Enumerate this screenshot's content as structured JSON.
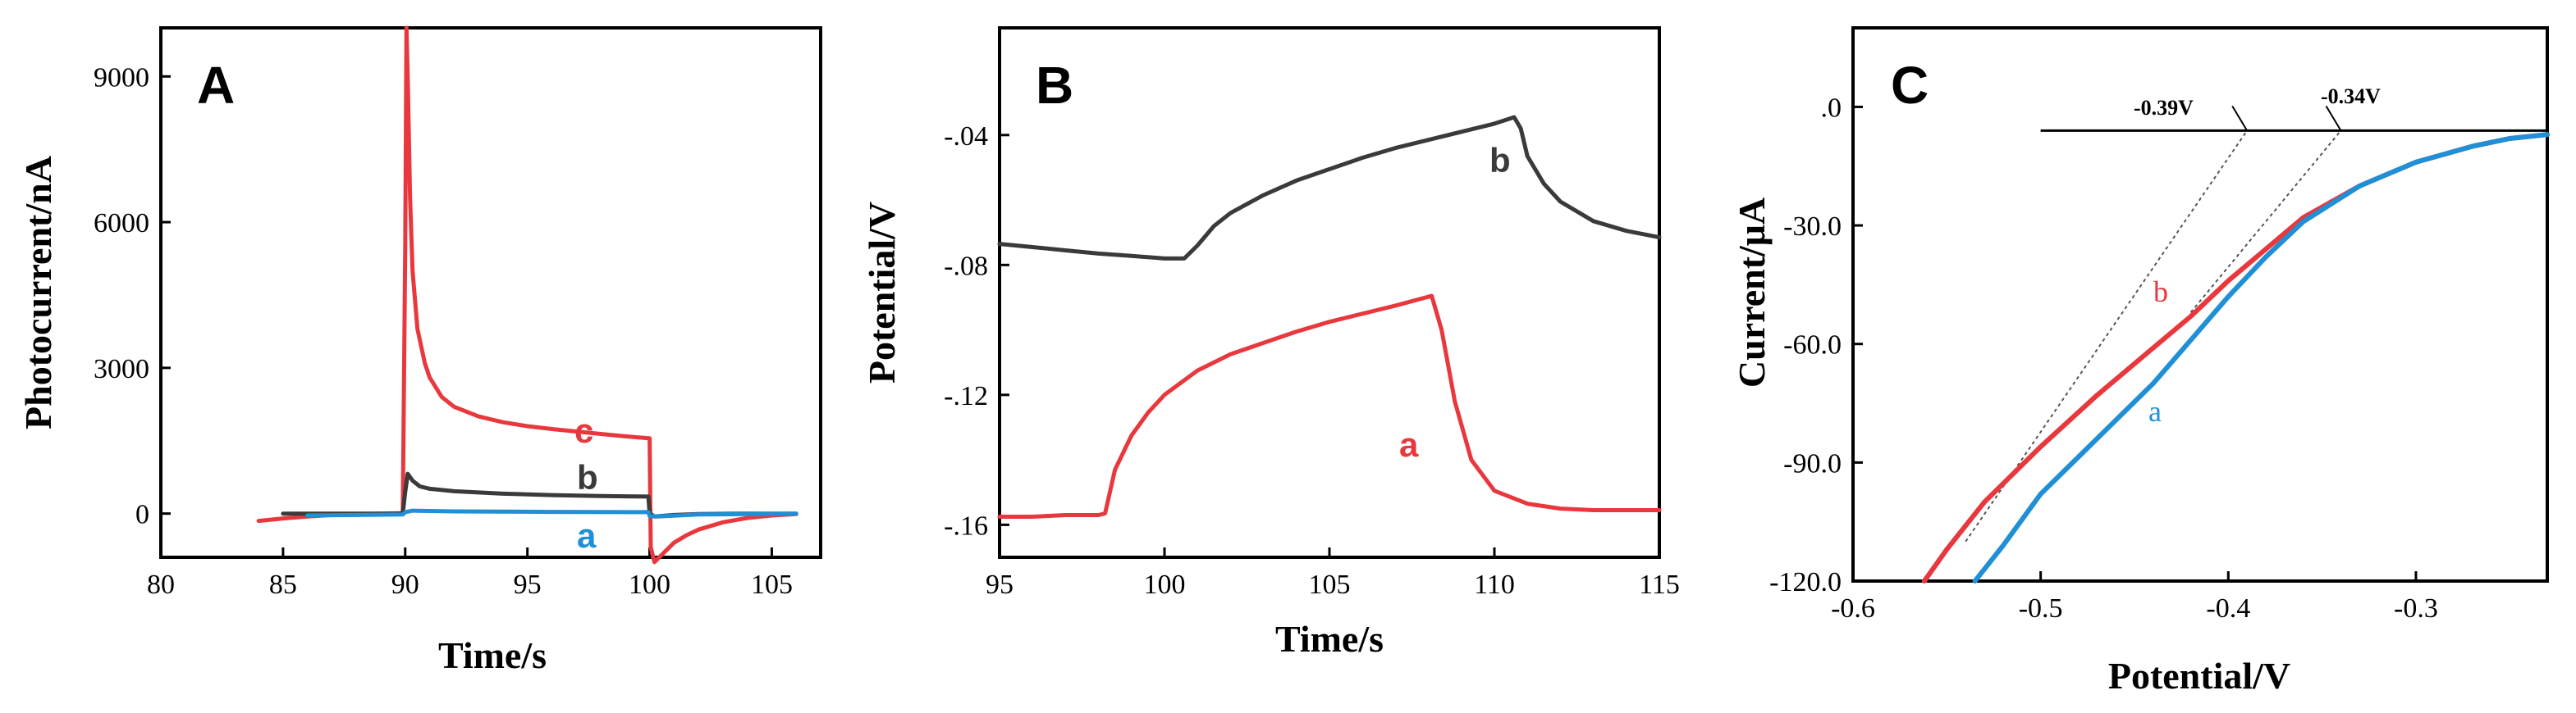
{
  "colors": {
    "red": "#e8383d",
    "gray": "#3a3a3a",
    "blue": "#1f8fd6",
    "black": "#000000"
  },
  "chart_data": [
    {
      "type": "line",
      "panel": "A",
      "xlabel": "Time/s",
      "ylabel": "Photocurrent/nA",
      "xlim": [
        80,
        107
      ],
      "ylim": [
        -900,
        10000
      ],
      "xticks": [
        80,
        85,
        90,
        95,
        100,
        105
      ],
      "yticks": [
        0,
        3000,
        6000,
        9000
      ],
      "series": [
        {
          "name": "c",
          "color": "#e8383d",
          "x": [
            84,
            85,
            86,
            87,
            88,
            89,
            89.9,
            90.0,
            90.05,
            90.1,
            90.2,
            90.3,
            90.5,
            90.8,
            91,
            91.5,
            92,
            93,
            94,
            95,
            96,
            97,
            98,
            99,
            99.95,
            100.0,
            100.05,
            100.2,
            100.5,
            101,
            101.5,
            102,
            103,
            104,
            105,
            106
          ],
          "y": [
            -150,
            -100,
            -60,
            -30,
            -10,
            0,
            10,
            5500,
            10000,
            9000,
            6500,
            5000,
            3800,
            3100,
            2800,
            2400,
            2200,
            2000,
            1880,
            1800,
            1740,
            1690,
            1640,
            1590,
            1550,
            1550,
            -700,
            -1000,
            -850,
            -600,
            -450,
            -330,
            -180,
            -90,
            -40,
            -10
          ]
        },
        {
          "name": "b",
          "color": "#3a3a3a",
          "x": [
            85,
            86,
            88,
            89.9,
            90.0,
            90.1,
            90.3,
            90.6,
            91,
            92,
            94,
            96,
            98,
            99.95,
            100.0,
            100.2,
            101,
            102,
            104,
            106
          ],
          "y": [
            0,
            0,
            0,
            0,
            450,
            820,
            680,
            560,
            510,
            460,
            410,
            380,
            360,
            350,
            0,
            -60,
            -30,
            -10,
            0,
            0
          ]
        },
        {
          "name": "a",
          "color": "#1f8fd6",
          "x": [
            86,
            88,
            89.9,
            90.0,
            90.3,
            92,
            96,
            99.95,
            100.0,
            100.3,
            102,
            104,
            106
          ],
          "y": [
            -40,
            -30,
            -20,
            30,
            60,
            45,
            35,
            30,
            -50,
            -60,
            -20,
            -10,
            0
          ]
        }
      ],
      "labels": [
        "c",
        "b",
        "a"
      ]
    },
    {
      "type": "line",
      "panel": "B",
      "xlabel": "Time/s",
      "ylabel": "Potential/V",
      "xlim": [
        95,
        115
      ],
      "ylim": [
        -0.17,
        -0.007
      ],
      "xticks": [
        95,
        100,
        105,
        110,
        115
      ],
      "yticks": [
        -0.16,
        -0.12,
        -0.08,
        -0.04
      ],
      "series": [
        {
          "name": "b",
          "color": "#3a3a3a",
          "x": [
            95,
            96,
            97,
            98,
            99,
            100,
            100.6,
            101,
            101.5,
            102,
            103,
            104,
            105,
            106,
            107,
            108,
            109,
            110,
            110.6,
            110.8,
            111,
            111.5,
            112,
            113,
            114,
            115
          ],
          "y": [
            -0.0735,
            -0.0745,
            -0.0755,
            -0.0765,
            -0.0772,
            -0.078,
            -0.078,
            -0.074,
            -0.068,
            -0.064,
            -0.0585,
            -0.054,
            -0.0505,
            -0.047,
            -0.044,
            -0.0415,
            -0.039,
            -0.0365,
            -0.0345,
            -0.038,
            -0.0465,
            -0.055,
            -0.0605,
            -0.0665,
            -0.0695,
            -0.0715
          ]
        },
        {
          "name": "a",
          "color": "#e8383d",
          "x": [
            95,
            96,
            97,
            98,
            98.2,
            98.5,
            99,
            99.5,
            100,
            101,
            102,
            103,
            104,
            105,
            106,
            107,
            108.1,
            108.4,
            108.8,
            109.3,
            110,
            111,
            112,
            113,
            114,
            115
          ],
          "y": [
            -0.1575,
            -0.1575,
            -0.157,
            -0.157,
            -0.1565,
            -0.143,
            -0.1325,
            -0.1255,
            -0.12,
            -0.1125,
            -0.1075,
            -0.104,
            -0.1005,
            -0.0975,
            -0.095,
            -0.0925,
            -0.0895,
            -0.1,
            -0.122,
            -0.14,
            -0.1495,
            -0.1535,
            -0.155,
            -0.1555,
            -0.1555,
            -0.1555
          ]
        }
      ],
      "labels": [
        "b",
        "a"
      ]
    },
    {
      "type": "line",
      "panel": "C",
      "xlabel": "Potential/V",
      "ylabel": "Current/μA",
      "xlim": [
        -0.6,
        -0.23
      ],
      "ylim": [
        -120,
        20
      ],
      "xticks": [
        -0.6,
        -0.5,
        -0.4,
        -0.3
      ],
      "yticks": [
        0,
        -30,
        -60,
        -90,
        -120
      ],
      "series": [
        {
          "name": "b",
          "color": "#e8383d",
          "x": [
            -0.562,
            -0.55,
            -0.53,
            -0.5,
            -0.47,
            -0.44,
            -0.42,
            -0.4,
            -0.38,
            -0.36,
            -0.33,
            -0.3,
            -0.27,
            -0.25,
            -0.23
          ],
          "y": [
            -120,
            -112,
            -100,
            -86,
            -73,
            -61,
            -53,
            -44,
            -36,
            -28,
            -20,
            -14,
            -10,
            -8,
            -7
          ]
        },
        {
          "name": "a",
          "color": "#1f8fd6",
          "x": [
            -0.535,
            -0.52,
            -0.5,
            -0.47,
            -0.44,
            -0.42,
            -0.4,
            -0.38,
            -0.36,
            -0.33,
            -0.3,
            -0.27,
            -0.25,
            -0.23
          ],
          "y": [
            -120,
            -111,
            -98,
            -84,
            -70,
            -59,
            -48,
            -38,
            -29,
            -20,
            -14,
            -10,
            -8,
            -7
          ]
        }
      ],
      "baseline_y": -6,
      "baseline_x": [
        -0.5,
        -0.23
      ],
      "tangents": [
        {
          "from": [
            -0.54,
            -110
          ],
          "to": [
            -0.39,
            -6
          ]
        },
        {
          "from": [
            -0.42,
            -52
          ],
          "to": [
            -0.34,
            -6
          ]
        }
      ],
      "annotations": [
        "-0.39V",
        "-0.34V"
      ],
      "labels": [
        "b",
        "a"
      ]
    }
  ]
}
